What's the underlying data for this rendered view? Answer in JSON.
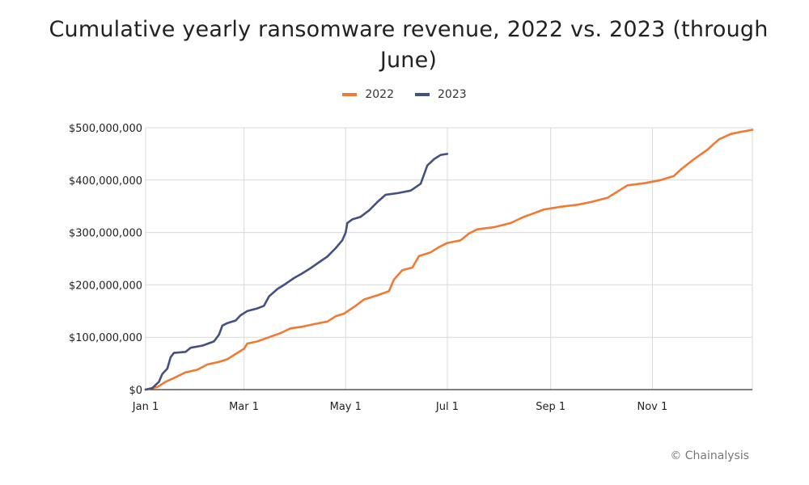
{
  "chart_data": {
    "type": "line",
    "title": "Cumulative yearly ransomware revenue, 2022 vs. 2023 (through June)",
    "title_lines": [
      "Cumulative yearly ransomware revenue, 2022 vs. 2023 (through",
      "June)"
    ],
    "xlabel": "",
    "ylabel": "",
    "x_unit": "day of year",
    "xlim": [
      1,
      365
    ],
    "ylim": [
      0,
      500000000
    ],
    "x_ticks": [
      {
        "label": "Jan 1",
        "x": 1
      },
      {
        "label": "Mar 1",
        "x": 60
      },
      {
        "label": "May 1",
        "x": 121
      },
      {
        "label": "Jul 1",
        "x": 182
      },
      {
        "label": "Sep 1",
        "x": 244
      },
      {
        "label": "Nov 1",
        "x": 305
      }
    ],
    "y_ticks": [
      {
        "label": "$0",
        "y": 0
      },
      {
        "label": "$100,000,000",
        "y": 100000000
      },
      {
        "label": "$200,000,000",
        "y": 200000000
      },
      {
        "label": "$300,000,000",
        "y": 300000000
      },
      {
        "label": "$400,000,000",
        "y": 400000000
      },
      {
        "label": "$500,000,000",
        "y": 500000000
      }
    ],
    "grid": true,
    "legend_position": "top-center",
    "series": [
      {
        "name": "2022",
        "color": "#F07A34",
        "points": [
          [
            1,
            0
          ],
          [
            8,
            5000000
          ],
          [
            13,
            15000000
          ],
          [
            18,
            22000000
          ],
          [
            25,
            33000000
          ],
          [
            32,
            38000000
          ],
          [
            38,
            48000000
          ],
          [
            45,
            53000000
          ],
          [
            50,
            58000000
          ],
          [
            55,
            68000000
          ],
          [
            60,
            78000000
          ],
          [
            62,
            88000000
          ],
          [
            68,
            92000000
          ],
          [
            75,
            100000000
          ],
          [
            82,
            108000000
          ],
          [
            88,
            117000000
          ],
          [
            95,
            120000000
          ],
          [
            102,
            125000000
          ],
          [
            110,
            130000000
          ],
          [
            115,
            140000000
          ],
          [
            120,
            145000000
          ],
          [
            127,
            160000000
          ],
          [
            132,
            172000000
          ],
          [
            140,
            180000000
          ],
          [
            147,
            188000000
          ],
          [
            150,
            210000000
          ],
          [
            155,
            228000000
          ],
          [
            161,
            233000000
          ],
          [
            165,
            255000000
          ],
          [
            172,
            262000000
          ],
          [
            177,
            272000000
          ],
          [
            182,
            280000000
          ],
          [
            190,
            285000000
          ],
          [
            195,
            298000000
          ],
          [
            200,
            306000000
          ],
          [
            210,
            310000000
          ],
          [
            220,
            318000000
          ],
          [
            228,
            330000000
          ],
          [
            235,
            338000000
          ],
          [
            240,
            344000000
          ],
          [
            250,
            349000000
          ],
          [
            260,
            353000000
          ],
          [
            268,
            358000000
          ],
          [
            278,
            366000000
          ],
          [
            285,
            380000000
          ],
          [
            290,
            390000000
          ],
          [
            300,
            394000000
          ],
          [
            310,
            400000000
          ],
          [
            318,
            408000000
          ],
          [
            322,
            420000000
          ],
          [
            330,
            440000000
          ],
          [
            338,
            458000000
          ],
          [
            345,
            478000000
          ],
          [
            352,
            488000000
          ],
          [
            358,
            492000000
          ],
          [
            365,
            496000000
          ]
        ]
      },
      {
        "name": "2023",
        "color": "#44507F",
        "points": [
          [
            1,
            0
          ],
          [
            5,
            3000000
          ],
          [
            9,
            15000000
          ],
          [
            11,
            30000000
          ],
          [
            14,
            40000000
          ],
          [
            16,
            62000000
          ],
          [
            18,
            70000000
          ],
          [
            25,
            72000000
          ],
          [
            28,
            80000000
          ],
          [
            35,
            84000000
          ],
          [
            42,
            92000000
          ],
          [
            45,
            105000000
          ],
          [
            47,
            122000000
          ],
          [
            50,
            127000000
          ],
          [
            55,
            132000000
          ],
          [
            58,
            142000000
          ],
          [
            62,
            150000000
          ],
          [
            68,
            155000000
          ],
          [
            72,
            160000000
          ],
          [
            75,
            178000000
          ],
          [
            80,
            192000000
          ],
          [
            85,
            202000000
          ],
          [
            90,
            213000000
          ],
          [
            95,
            222000000
          ],
          [
            100,
            232000000
          ],
          [
            105,
            243000000
          ],
          [
            110,
            254000000
          ],
          [
            115,
            270000000
          ],
          [
            119,
            285000000
          ],
          [
            121,
            300000000
          ],
          [
            122,
            318000000
          ],
          [
            125,
            325000000
          ],
          [
            130,
            330000000
          ],
          [
            135,
            342000000
          ],
          [
            140,
            358000000
          ],
          [
            145,
            372000000
          ],
          [
            152,
            375000000
          ],
          [
            160,
            380000000
          ],
          [
            166,
            393000000
          ],
          [
            170,
            428000000
          ],
          [
            174,
            440000000
          ],
          [
            178,
            448000000
          ],
          [
            182,
            450000000
          ]
        ]
      }
    ],
    "credit": "© Chainalysis"
  }
}
